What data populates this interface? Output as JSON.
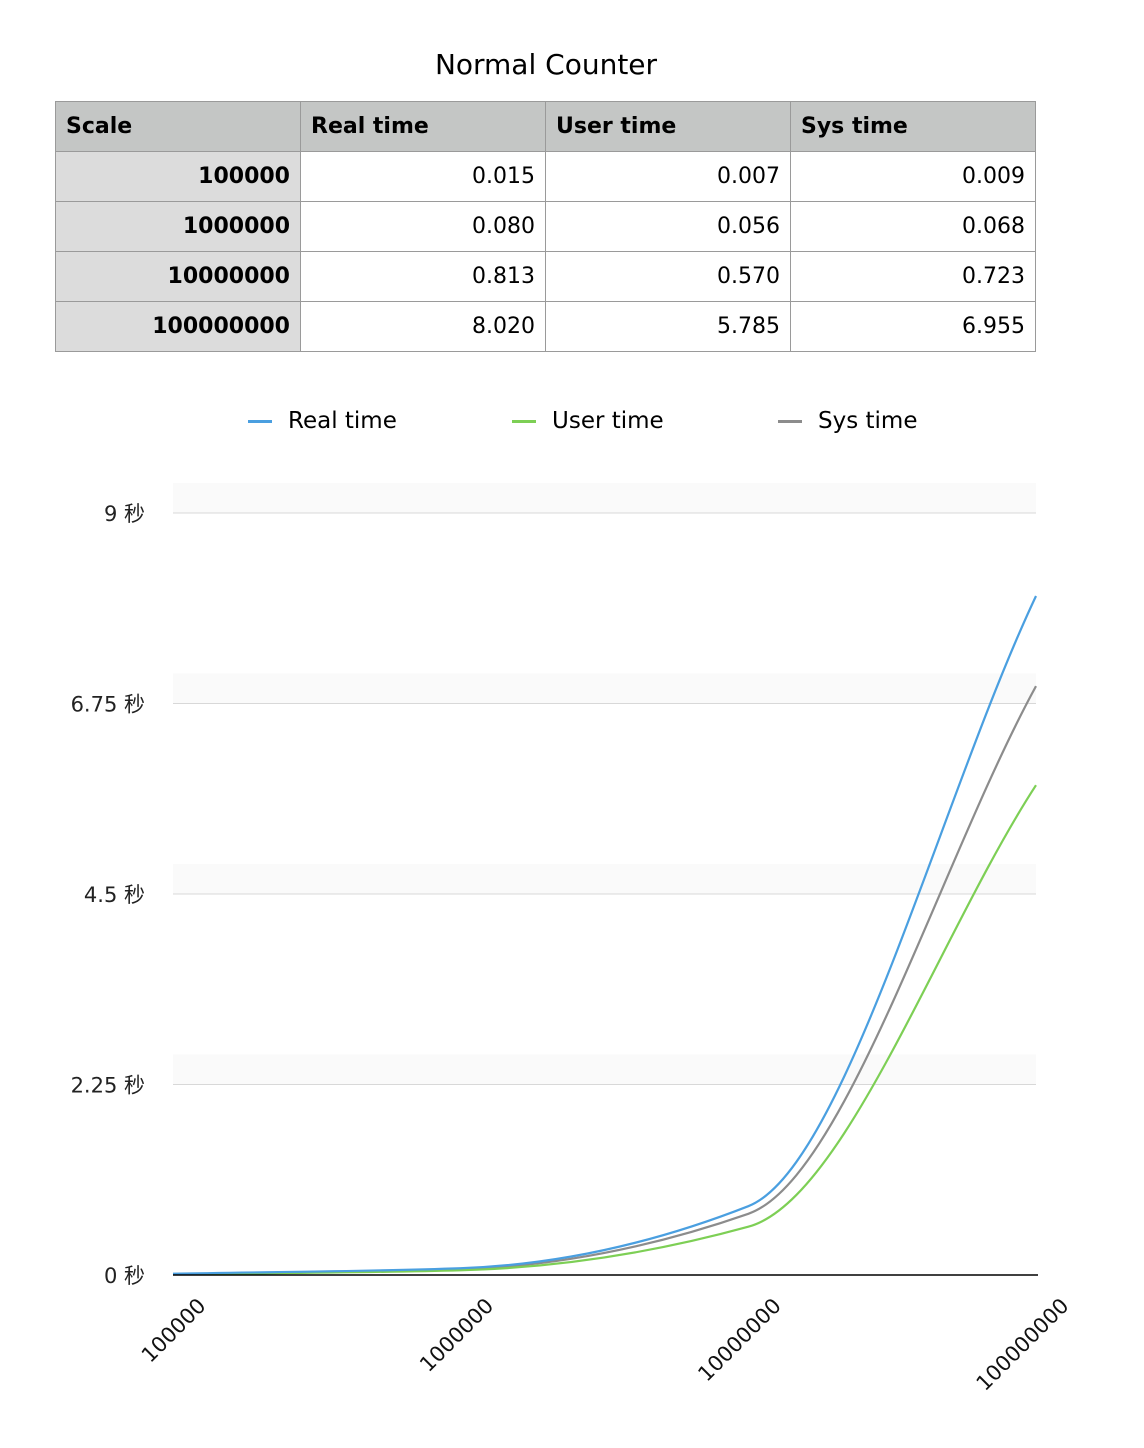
{
  "title": "Normal Counter",
  "table": {
    "headers": [
      "Scale",
      "Real time",
      "User time",
      "Sys time"
    ],
    "rows": [
      {
        "scale": "100000",
        "real": "0.015",
        "user": "0.007",
        "sys": "0.009"
      },
      {
        "scale": "1000000",
        "real": "0.080",
        "user": "0.056",
        "sys": "0.068"
      },
      {
        "scale": "10000000",
        "real": "0.813",
        "user": "0.570",
        "sys": "0.723"
      },
      {
        "scale": "100000000",
        "real": "8.020",
        "user": "5.785",
        "sys": "6.955"
      }
    ]
  },
  "chart_data": {
    "type": "line",
    "categories": [
      "100000",
      "1000000",
      "10000000",
      "100000000"
    ],
    "series": [
      {
        "name": "Real time",
        "color": "#4a9fe0",
        "values": [
          0.015,
          0.08,
          0.813,
          8.02
        ]
      },
      {
        "name": "User time",
        "color": "#7dcf55",
        "values": [
          0.007,
          0.056,
          0.57,
          5.785
        ]
      },
      {
        "name": "Sys time",
        "color": "#8c8c8c",
        "values": [
          0.009,
          0.068,
          0.723,
          6.955
        ]
      }
    ],
    "ylim": [
      0,
      9
    ],
    "yticks": [
      0,
      2.25,
      4.5,
      6.75,
      9
    ],
    "ytick_labels": [
      "0 秒",
      "2.25 秒",
      "4.5 秒",
      "6.75 秒",
      "9 秒"
    ],
    "legend_position": "top",
    "grid": true,
    "smooth": true
  }
}
